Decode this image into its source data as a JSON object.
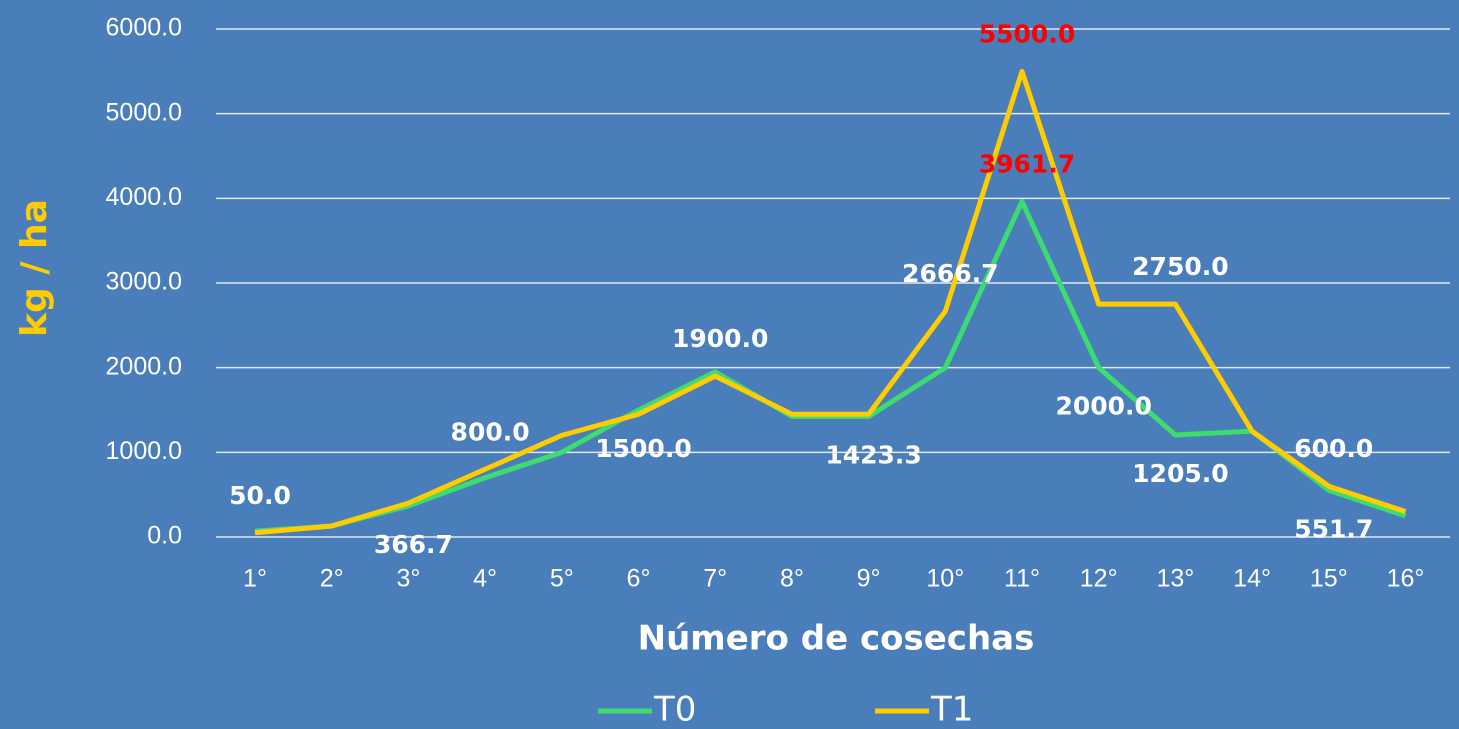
{
  "chart_data": {
    "type": "line",
    "x_label": "Número de cosechas",
    "y_label": "kg / ha",
    "categories": [
      "1°",
      "2°",
      "3°",
      "4°",
      "5°",
      "6°",
      "7°",
      "8°",
      "9°",
      "10°",
      "11°",
      "12°",
      "13°",
      "14°",
      "15°",
      "16°"
    ],
    "series": [
      {
        "name": "T0",
        "color": "#3ddc6f",
        "values": [
          70,
          130,
          366.7,
          700,
          1000,
          1500,
          1950,
          1423.3,
          1423.3,
          2000,
          3961.7,
          2000,
          1205,
          1250,
          551.7,
          250
        ],
        "value_labels": [
          null,
          null,
          "366.7",
          null,
          null,
          "1500.0",
          null,
          null,
          "1423.3",
          null,
          "3961.7",
          "2000.0",
          "1205.0",
          null,
          "551.7",
          null
        ]
      },
      {
        "name": "T1",
        "color": "#ffcc00",
        "values": [
          50,
          130,
          400,
          800,
          1200,
          1450,
          1900,
          1450,
          1450,
          2666.7,
          5500,
          2750,
          2750,
          1250,
          600,
          300
        ],
        "value_labels": [
          "50.0",
          null,
          null,
          "800.0",
          null,
          null,
          "1900.0",
          null,
          null,
          "2666.7",
          "5500.0",
          null,
          "2750.0",
          null,
          "600.0",
          null
        ]
      }
    ],
    "highlight_category": "11°",
    "highlight_color": "#ff0000",
    "ylim": [
      0,
      6000
    ],
    "yticks": [
      {
        "value": 0,
        "label": "0.0"
      },
      {
        "value": 1000,
        "label": "1000.0"
      },
      {
        "value": 2000,
        "label": "2000.0"
      },
      {
        "value": 3000,
        "label": "3000.0"
      },
      {
        "value": 4000,
        "label": "4000.0"
      },
      {
        "value": 5000,
        "label": "5000.0"
      },
      {
        "value": 6000,
        "label": "6000.0"
      }
    ],
    "grid": true,
    "legend": "bottom"
  }
}
